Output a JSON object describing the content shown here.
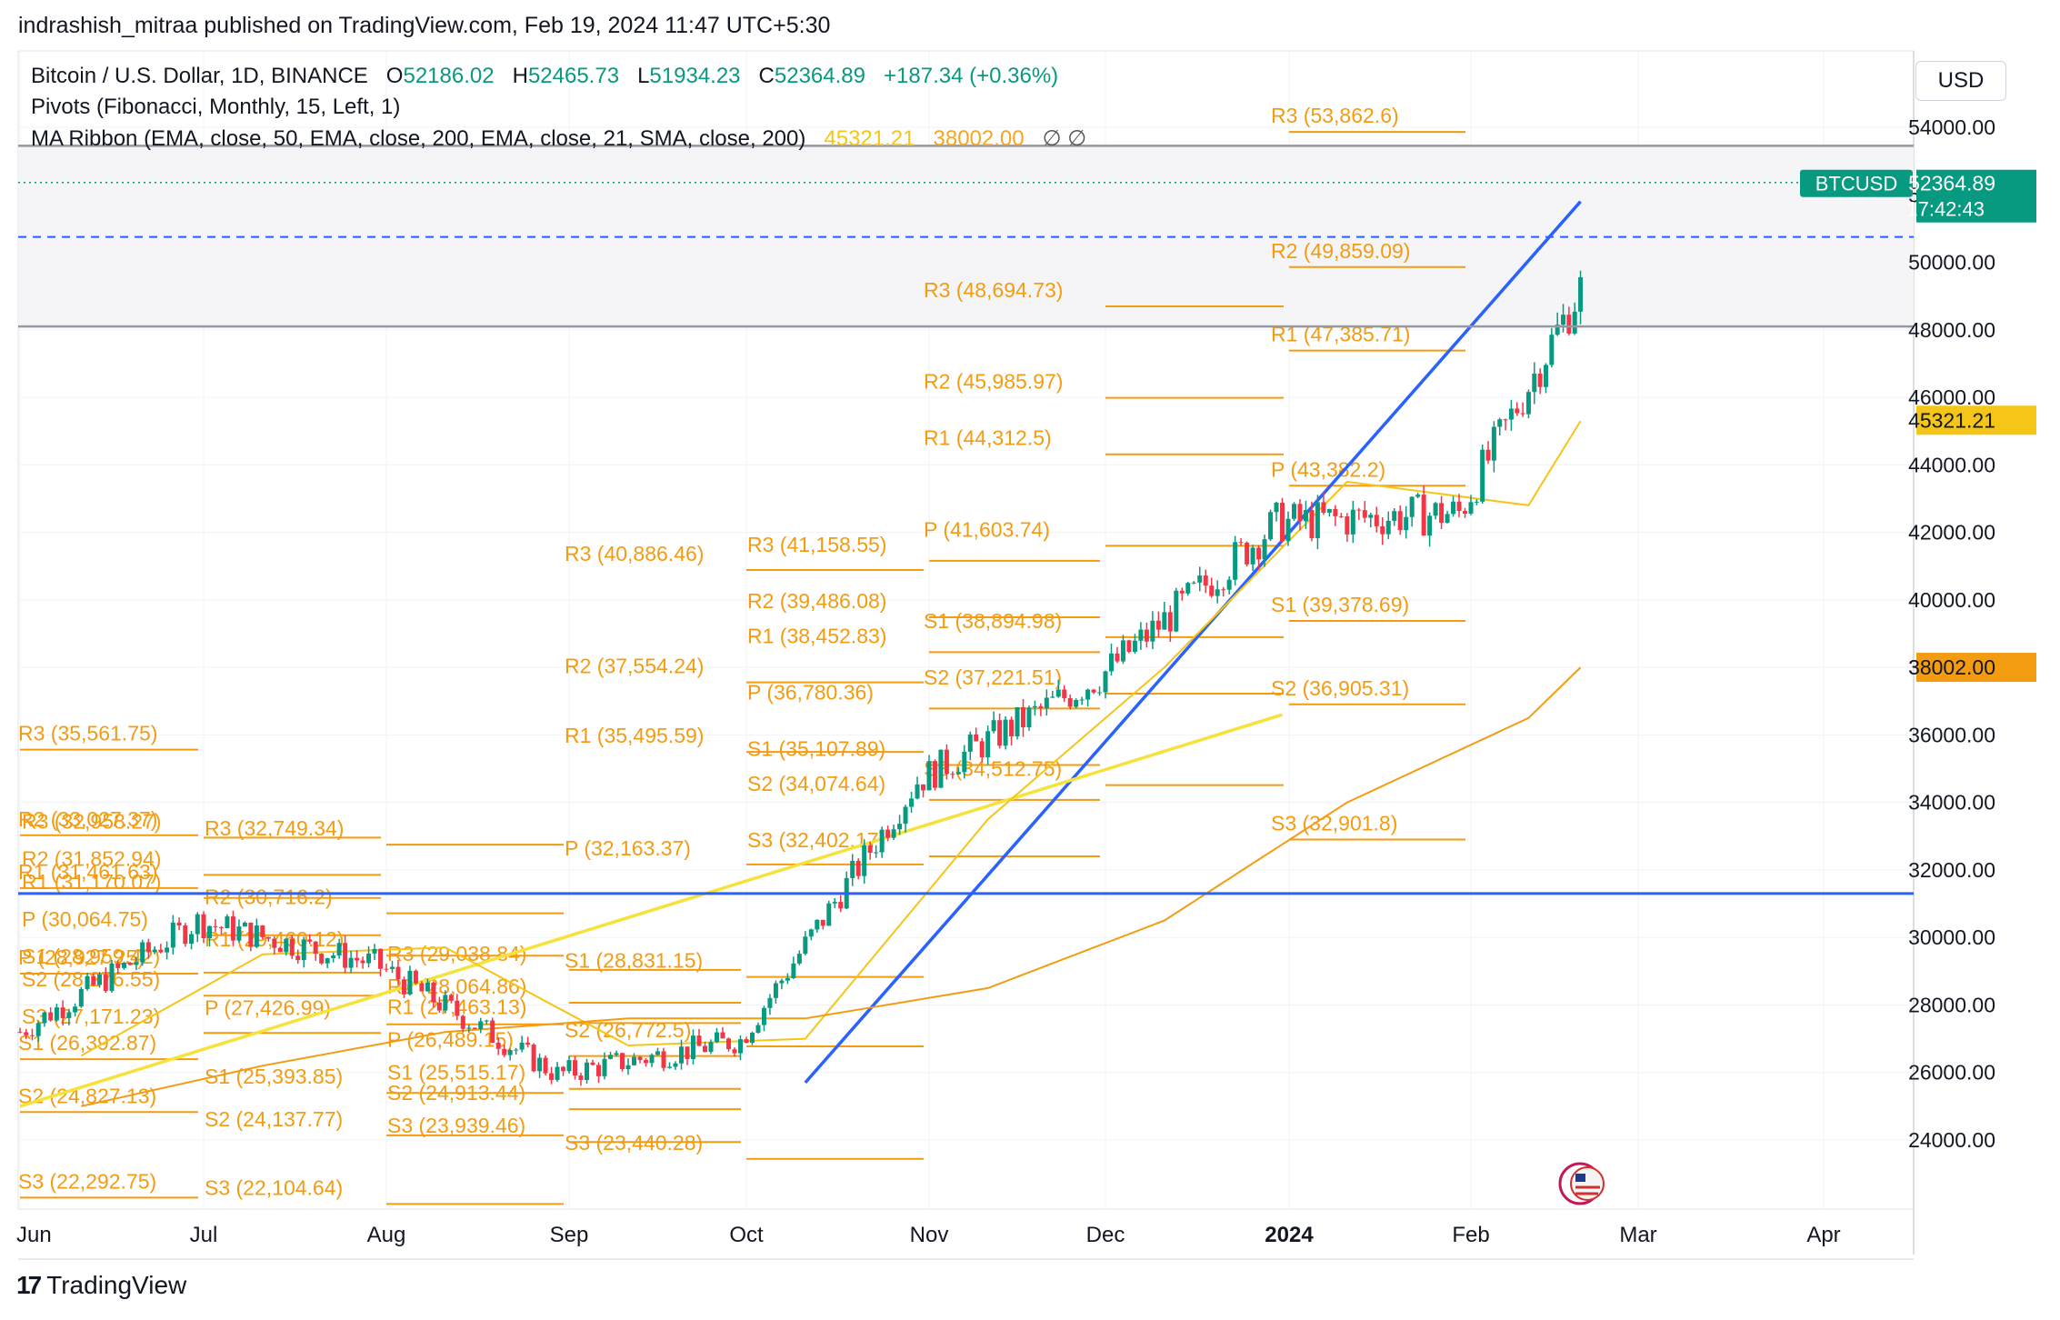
{
  "header": {
    "publish_line": "indrashish_mitraa published on TradingView.com, Feb 19, 2024 11:47 UTC+5:30"
  },
  "legend": {
    "symbol": "Bitcoin / U.S. Dollar, 1D, BINANCE",
    "o_label": "O",
    "o_value": "52186.02",
    "h_label": "H",
    "h_value": "52465.73",
    "l_label": "L",
    "l_value": "51934.23",
    "c_label": "C",
    "c_value": "52364.89",
    "change": "+187.34 (+0.36%)",
    "pivots": "Pivots (Fibonacci, Monthly, 15, Left, 1)",
    "ma_ribbon": "MA Ribbon (EMA, close, 50, EMA, close, 200, EMA, close, 21, SMA, close, 200)",
    "ma_value_1": "45321.21",
    "ma_value_2": "38002.00",
    "ma_na": "∅  ∅"
  },
  "currency_button": "USD",
  "footer": {
    "brand": "TradingView",
    "logo_glyph": "17"
  },
  "chart_data": {
    "type": "candlestick",
    "symbol": "BTCUSD",
    "timeframe": "1D",
    "x_axis": {
      "ticks": [
        "Jun",
        "Jul",
        "Aug",
        "Sep",
        "Oct",
        "Nov",
        "Dec",
        "2024",
        "Feb",
        "Mar",
        "Apr"
      ]
    },
    "y_axis": {
      "ticks": [
        "24000.00",
        "26000.00",
        "28000.00",
        "30000.00",
        "32000.00",
        "34000.00",
        "36000.00",
        "38000.00",
        "40000.00",
        "42000.00",
        "44000.00",
        "46000.00",
        "48000.00",
        "50000.00",
        "52000.00",
        "54000.00"
      ],
      "ylim": [
        22000,
        55500
      ]
    },
    "price_labels": [
      {
        "label": "BTCUSD",
        "value": "52364.89",
        "countdown": "17:42:43",
        "color": "#089981"
      },
      {
        "label": "",
        "value": "45321.21",
        "color": "#f5c518"
      },
      {
        "label": "",
        "value": "38002.00",
        "color": "#f39c12"
      }
    ],
    "last_price": 52364.89,
    "horizontal_lines": [
      {
        "price": 53450,
        "color": "#9598a1",
        "style": "solid"
      },
      {
        "price": 48100,
        "color": "#9598a1",
        "style": "solid"
      },
      {
        "price": 50750,
        "color": "#2962ff",
        "style": "dashed"
      },
      {
        "price": 31300,
        "color": "#2962ff",
        "style": "solid"
      }
    ],
    "pivot_months": [
      {
        "month": "Jun",
        "levels": [
          [
            "R3 (35,561.75)",
            35561.75
          ],
          [
            "R2 (33,027.37)",
            33027.37
          ],
          [
            "R1 (31,461.63)",
            31461.63
          ],
          [
            "P (28,927.25)",
            28927.25
          ],
          [
            "S1 (26,392.87)",
            26392.87
          ],
          [
            "S2 (24,827.13)",
            24827.13
          ],
          [
            "S3 (22,292.75)",
            22292.75
          ]
        ]
      },
      {
        "month": "Jul",
        "levels": [
          [
            "R3 (32,958.27)",
            32958.27
          ],
          [
            "R2 (31,852.94)",
            31852.94
          ],
          [
            "R1 (31,170.07)",
            31170.07
          ],
          [
            "P (30,064.75)",
            30064.75
          ],
          [
            "S1 (28,959.42)",
            28959.42
          ],
          [
            "S2 (28,276.55)",
            28276.55
          ],
          [
            "S3 (27,171.23)",
            27171.23
          ]
        ]
      },
      {
        "month": "Aug",
        "levels": [
          [
            "R3 (32,749.34)",
            32749.34
          ],
          [
            "R2 (30,716.2)",
            30716.2
          ],
          [
            "R1 (29,460.12)",
            29460.12
          ],
          [
            "P (27,426.99)",
            27426.99
          ],
          [
            "S1 (25,393.85)",
            25393.85
          ],
          [
            "S2 (24,137.77)",
            24137.77
          ],
          [
            "S3 (22,104.64)",
            22104.64
          ]
        ]
      },
      {
        "month": "Sep",
        "levels": [
          [
            "R3 (29,038.84)",
            29038.84
          ],
          [
            "R2 (28,064.86)",
            28064.86
          ],
          [
            "R1 (27,463.13)",
            27463.13
          ],
          [
            "P (26,489.15)",
            26489.15
          ],
          [
            "S1 (25,515.17)",
            25515.17
          ],
          [
            "S2 (24,913.44)",
            24913.44
          ],
          [
            "S3 (23,939.46)",
            23939.46
          ]
        ]
      },
      {
        "month": "Oct",
        "levels": [
          [
            "R3 (40,886.46)",
            40886.46
          ],
          [
            "R2 (37,554.24)",
            37554.24
          ],
          [
            "R1 (35,495.59)",
            35495.59
          ],
          [
            "P (32,163.37)",
            32163.37
          ],
          [
            "S1 (28,831.15)",
            28831.15
          ],
          [
            "S2 (26,772.5)",
            26772.5
          ],
          [
            "S3 (23,440.28)",
            23440.28
          ]
        ]
      },
      {
        "month": "Nov",
        "levels": [
          [
            "R3 (41,158.55)",
            41158.55
          ],
          [
            "R2 (39,486.08)",
            39486.08
          ],
          [
            "R1 (38,452.83)",
            38452.83
          ],
          [
            "P (36,780.36)",
            36780.36
          ],
          [
            "S1 (35,107.89)",
            35107.89
          ],
          [
            "S2 (34,074.64)",
            34074.64
          ],
          [
            "S3 (32,402.17)",
            32402.17
          ]
        ]
      },
      {
        "month": "Dec",
        "levels": [
          [
            "R3 (48,694.73)",
            48694.73
          ],
          [
            "R2 (45,985.97)",
            45985.97
          ],
          [
            "R1 (44,312.5)",
            44312.5
          ],
          [
            "P (41,603.74)",
            41603.74
          ],
          [
            "S1 (38,894.98)",
            38894.98
          ],
          [
            "S2 (37,221.51)",
            37221.51
          ],
          [
            "S3 (34,512.75)",
            34512.75
          ]
        ]
      },
      {
        "month": "2024",
        "levels": [
          [
            "R3 (53,862.6)",
            53862.6
          ],
          [
            "R2 (49,859.09)",
            49859.09
          ],
          [
            "R1 (47,385.71)",
            47385.71
          ],
          [
            "P (43,382.2)",
            43382.2
          ],
          [
            "S1 (39,378.69)",
            39378.69
          ],
          [
            "S2 (36,905.31)",
            36905.31
          ],
          [
            "S3 (32,901.8)",
            32901.8
          ]
        ]
      }
    ],
    "trendlines": [
      {
        "color": "#2962ff",
        "from": [
          "2023-10-11",
          25700
        ],
        "to": [
          "2024-02-20",
          51800
        ]
      },
      {
        "color": "#f5e23a",
        "from": [
          "2023-06-01",
          25000
        ],
        "to": [
          "2023-12-31",
          36600
        ]
      }
    ],
    "ma_lines": [
      {
        "name": "EMA 21",
        "color": "#f5c518",
        "points": [
          [
            "Jun",
            26500
          ],
          [
            "Jul",
            29500
          ],
          [
            "Aug",
            29700
          ],
          [
            "Sep",
            26800
          ],
          [
            "Oct",
            27000
          ],
          [
            "Nov",
            33500
          ],
          [
            "Dec",
            38000
          ],
          [
            "2024",
            43500
          ],
          [
            "Feb",
            42800
          ],
          [
            "Feb 20",
            45300
          ]
        ]
      },
      {
        "name": "EMA 200",
        "color": "#f39c12",
        "points": [
          [
            "Jun",
            25000
          ],
          [
            "Jul",
            26200
          ],
          [
            "Aug",
            27200
          ],
          [
            "Sep",
            27600
          ],
          [
            "Oct",
            27600
          ],
          [
            "Nov",
            28500
          ],
          [
            "Dec",
            30500
          ],
          [
            "2024",
            34000
          ],
          [
            "Feb",
            36500
          ],
          [
            "Feb 20",
            38000
          ]
        ]
      }
    ],
    "monthly_closes": [
      [
        "Jun",
        30470
      ],
      [
        "Jul",
        29230
      ],
      [
        "Aug",
        25940
      ],
      [
        "Sep",
        26960
      ],
      [
        "Oct",
        34640
      ],
      [
        "Nov",
        37720
      ],
      [
        "Dec",
        42280
      ],
      [
        "2024",
        42580
      ],
      [
        "Feb",
        52364.89
      ]
    ]
  }
}
